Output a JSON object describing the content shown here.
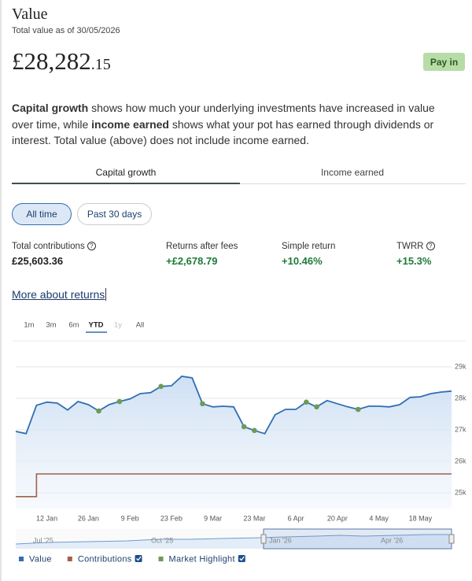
{
  "header": {
    "title": "Value",
    "subtitle": "Total value as of 30/05/2026",
    "amount_main": "£28,282",
    "amount_pence": ".15",
    "button": "Pay in"
  },
  "intro": [
    {
      "text": "Capital growth",
      "bold": true
    },
    {
      "text": " shows how much your underlying investments have increased in value over time, while ",
      "bold": false
    },
    {
      "text": "income earned",
      "bold": true
    },
    {
      "text": " shows what your pot has earned through dividends or interest. Total value (above) does not include income earned.",
      "bold": false
    }
  ],
  "tabs": [
    "Capital growth",
    "Income earned"
  ],
  "filters": [
    "All time",
    "Past 30 days"
  ],
  "stats": [
    {
      "label": "Total contributions",
      "value": "£25,603.36"
    },
    {
      "label": "Returns after fees",
      "value": "+£2,678.79"
    },
    {
      "label": "Simple return",
      "value": "+10.46%"
    },
    {
      "label": "TWRR",
      "value": "+15.3%"
    }
  ],
  "link": "More about returns",
  "ranges": [
    "1m",
    "3m",
    "6m",
    "YTD",
    "1y",
    "All"
  ],
  "chart_data": {
    "type": "line",
    "categories": [
      null,
      null,
      null,
      "12 Jan",
      null,
      null,
      null,
      "26 Jan",
      null,
      null,
      null,
      "9 Feb",
      null,
      null,
      null,
      "23 Feb",
      null,
      null,
      null,
      "9 Mar",
      null,
      null,
      null,
      "23 Mar",
      null,
      null,
      null,
      "6 Apr",
      null,
      null,
      null,
      "20 Apr",
      null,
      null,
      null,
      "4 May",
      null,
      null,
      null,
      "18 May",
      null,
      null,
      null
    ],
    "series": [
      {
        "name": "Value",
        "color": "#2f6fb3",
        "type": "area",
        "values": [
          26950,
          26880,
          27780,
          27880,
          27850,
          27630,
          27900,
          27800,
          27600,
          27800,
          27900,
          27980,
          28150,
          28180,
          28380,
          28400,
          28700,
          28650,
          27830,
          27730,
          27750,
          27730,
          27100,
          26980,
          26880,
          27480,
          27650,
          27650,
          27880,
          27730,
          27930,
          27830,
          27730,
          27650,
          27750,
          27750,
          27730,
          27800,
          28030,
          28050,
          28150,
          28200,
          28230
        ]
      },
      {
        "name": "Contributions",
        "color": "#a0604a",
        "type": "line",
        "values": [
          24880,
          24880,
          25600,
          25600,
          25600,
          25600,
          25600,
          25600,
          25600,
          25600,
          25600,
          25600,
          25600,
          25600,
          25600,
          25600,
          25600,
          25600,
          25600,
          25600,
          25600,
          25600,
          25600,
          25600,
          25600,
          25600,
          25600,
          25600,
          25600,
          25600,
          25600,
          25600,
          25600,
          25600,
          25600,
          25600,
          25600,
          25600,
          25600,
          25600,
          25600,
          25600,
          25600
        ]
      },
      {
        "name": "Market Highlight",
        "color": "#6e9a56",
        "type": "scatter",
        "values": [
          null,
          null,
          null,
          null,
          null,
          null,
          null,
          null,
          27600,
          null,
          27900,
          null,
          null,
          null,
          28380,
          null,
          null,
          null,
          27830,
          null,
          null,
          null,
          27100,
          26980,
          null,
          null,
          null,
          null,
          27880,
          27730,
          null,
          null,
          null,
          27650,
          null,
          null,
          null,
          null,
          null,
          null,
          null,
          null,
          null
        ]
      }
    ],
    "ylim": [
      24500,
      29850
    ],
    "yticks": [
      {
        "value": 25000,
        "label": "25k"
      },
      {
        "value": 26000,
        "label": "26k"
      },
      {
        "value": 27000,
        "label": "27k"
      },
      {
        "value": 28000,
        "label": "28k"
      },
      {
        "value": 29000,
        "label": "29k"
      }
    ],
    "grid": true
  },
  "navigator_labels": [
    "Jul '25",
    "Oct '25",
    "Jan '26",
    "Apr '26"
  ]
}
